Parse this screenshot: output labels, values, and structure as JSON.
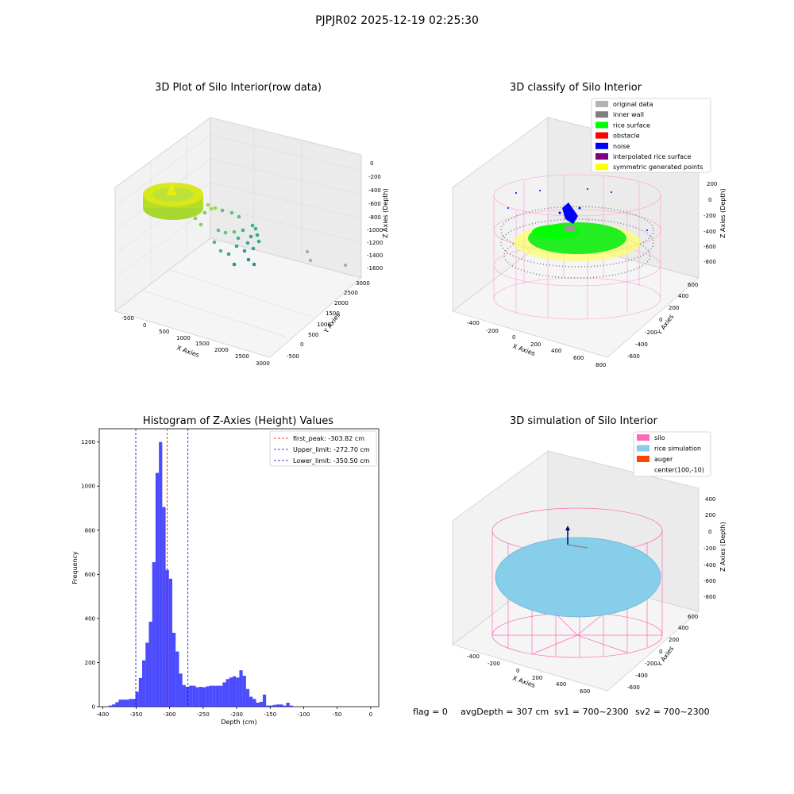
{
  "figure": {
    "suptitle": "PJPJR02 2025-12-19 02:25:30",
    "status": {
      "flag": "flag = 0",
      "avg_depth": "avgDepth = 307 cm",
      "sv1": "sv1 = 700~2300",
      "sv2": "sv2 = 700~2300"
    }
  },
  "panels": {
    "raw": {
      "title": "3D Plot of Silo Interior(row data)",
      "xlabel": "X Axies",
      "ylabel": "Y Axies",
      "zlabel": "Z Axies (Depth)",
      "xticks": [
        "-500",
        "0",
        "500",
        "1000",
        "1500",
        "2000",
        "2500",
        "3000"
      ],
      "yticks": [
        "-500",
        "0",
        "500",
        "1000",
        "1500",
        "2000",
        "2500",
        "3000"
      ],
      "zticks": [
        "0",
        "-200",
        "-400",
        "-600",
        "-800",
        "-1000",
        "-1200",
        "-1400",
        "-1600"
      ]
    },
    "classify": {
      "title": "3D classify of Silo Interior",
      "xlabel": "X Axies",
      "ylabel": "Y Axies",
      "zlabel": "Z Axies (Depth)",
      "xticks": [
        "-400",
        "-200",
        "0",
        "200",
        "400",
        "600",
        "800"
      ],
      "yticks": [
        "-600",
        "-400",
        "-200",
        "0",
        "200",
        "400",
        "600"
      ],
      "zticks": [
        "200",
        "0",
        "-200",
        "-400",
        "-600",
        "-800"
      ],
      "legend": [
        {
          "label": "original data",
          "color": "#b3b3b3"
        },
        {
          "label": "inner wall",
          "color": "#808080"
        },
        {
          "label": "rice surface",
          "color": "#00ff00"
        },
        {
          "label": "obstacle",
          "color": "#ff0000"
        },
        {
          "label": "noise",
          "color": "#0000ff"
        },
        {
          "label": "interpolated rice surface",
          "color": "#800080"
        },
        {
          "label": "symmetric generated points",
          "color": "#ffff00"
        }
      ]
    },
    "simulation": {
      "title": "3D simulation of Silo Interior",
      "xlabel": "X Axies",
      "ylabel": "Y Axies",
      "zlabel": "Z Axies (Depth)",
      "xticks": [
        "-400",
        "-200",
        "0",
        "200",
        "400",
        "600"
      ],
      "yticks": [
        "-600",
        "-400",
        "-200",
        "0",
        "200",
        "400",
        "600"
      ],
      "zticks": [
        "400",
        "200",
        "0",
        "-200",
        "-400",
        "-600",
        "-800"
      ],
      "legend": [
        {
          "label": "silo",
          "color": "#ff69b4"
        },
        {
          "label": "rice simulation",
          "color": "#87ceeb"
        },
        {
          "label": "auger",
          "color": "#ff4500"
        },
        {
          "label": "center(100,-10)",
          "color": null
        }
      ]
    }
  },
  "chart_data": {
    "type": "bar",
    "title": "Histogram of Z-Axies (Height) Values",
    "xlabel": "Depth (cm)",
    "ylabel": "Frequency",
    "xlim": [
      -405,
      12
    ],
    "ylim": [
      0,
      1260
    ],
    "xticks": [
      -400,
      -350,
      -300,
      -250,
      -200,
      -150,
      -100,
      -50,
      0
    ],
    "yticks": [
      0,
      200,
      400,
      600,
      800,
      1000,
      1200
    ],
    "bar_color": "#0000ff",
    "bins": [
      {
        "x0": -391,
        "x1": -386,
        "count": 5
      },
      {
        "x0": -386,
        "x1": -381,
        "count": 10
      },
      {
        "x0": -381,
        "x1": -376,
        "count": 20
      },
      {
        "x0": -376,
        "x1": -371,
        "count": 32
      },
      {
        "x0": -371,
        "x1": -366,
        "count": 32
      },
      {
        "x0": -366,
        "x1": -361,
        "count": 32
      },
      {
        "x0": -361,
        "x1": -356,
        "count": 35
      },
      {
        "x0": -356,
        "x1": -351,
        "count": 35
      },
      {
        "x0": -351,
        "x1": -346,
        "count": 68
      },
      {
        "x0": -346,
        "x1": -341,
        "count": 130
      },
      {
        "x0": -341,
        "x1": -336,
        "count": 210
      },
      {
        "x0": -336,
        "x1": -331,
        "count": 290
      },
      {
        "x0": -331,
        "x1": -326,
        "count": 385
      },
      {
        "x0": -326,
        "x1": -321,
        "count": 655
      },
      {
        "x0": -321,
        "x1": -316,
        "count": 1060
      },
      {
        "x0": -316,
        "x1": -311,
        "count": 1200
      },
      {
        "x0": -311,
        "x1": -306,
        "count": 905
      },
      {
        "x0": -306,
        "x1": -301,
        "count": 620
      },
      {
        "x0": -301,
        "x1": -296,
        "count": 580
      },
      {
        "x0": -296,
        "x1": -291,
        "count": 335
      },
      {
        "x0": -291,
        "x1": -286,
        "count": 250
      },
      {
        "x0": -286,
        "x1": -281,
        "count": 150
      },
      {
        "x0": -281,
        "x1": -276,
        "count": 98
      },
      {
        "x0": -276,
        "x1": -271,
        "count": 90
      },
      {
        "x0": -271,
        "x1": -266,
        "count": 95
      },
      {
        "x0": -266,
        "x1": -261,
        "count": 95
      },
      {
        "x0": -261,
        "x1": -256,
        "count": 88
      },
      {
        "x0": -256,
        "x1": -251,
        "count": 90
      },
      {
        "x0": -251,
        "x1": -246,
        "count": 88
      },
      {
        "x0": -246,
        "x1": -241,
        "count": 92
      },
      {
        "x0": -241,
        "x1": -236,
        "count": 95
      },
      {
        "x0": -236,
        "x1": -231,
        "count": 95
      },
      {
        "x0": -231,
        "x1": -226,
        "count": 95
      },
      {
        "x0": -226,
        "x1": -221,
        "count": 95
      },
      {
        "x0": -221,
        "x1": -216,
        "count": 110
      },
      {
        "x0": -216,
        "x1": -211,
        "count": 125
      },
      {
        "x0": -211,
        "x1": -206,
        "count": 132
      },
      {
        "x0": -206,
        "x1": -201,
        "count": 138
      },
      {
        "x0": -201,
        "x1": -196,
        "count": 132
      },
      {
        "x0": -196,
        "x1": -191,
        "count": 165
      },
      {
        "x0": -191,
        "x1": -186,
        "count": 140
      },
      {
        "x0": -186,
        "x1": -181,
        "count": 80
      },
      {
        "x0": -181,
        "x1": -176,
        "count": 45
      },
      {
        "x0": -176,
        "x1": -171,
        "count": 35
      },
      {
        "x0": -171,
        "x1": -166,
        "count": 18
      },
      {
        "x0": -166,
        "x1": -161,
        "count": 22
      },
      {
        "x0": -161,
        "x1": -156,
        "count": 55
      },
      {
        "x0": -156,
        "x1": -151,
        "count": 5
      },
      {
        "x0": -151,
        "x1": -146,
        "count": 5
      },
      {
        "x0": -146,
        "x1": -141,
        "count": 8
      },
      {
        "x0": -141,
        "x1": -136,
        "count": 10
      },
      {
        "x0": -136,
        "x1": -131,
        "count": 10
      },
      {
        "x0": -131,
        "x1": -126,
        "count": 5
      },
      {
        "x0": -126,
        "x1": -121,
        "count": 18
      },
      {
        "x0": -121,
        "x1": -116,
        "count": 5
      }
    ],
    "reference_lines": [
      {
        "label": "first_peak: -303.82 cm",
        "x": -303.82,
        "color": "#ff0000"
      },
      {
        "label": "Upper_limit: -272.70 cm",
        "x": -272.7,
        "color": "#0000ff"
      },
      {
        "label": "Lower_limit: -350.50 cm",
        "x": -350.5,
        "color": "#0000ff"
      }
    ]
  }
}
